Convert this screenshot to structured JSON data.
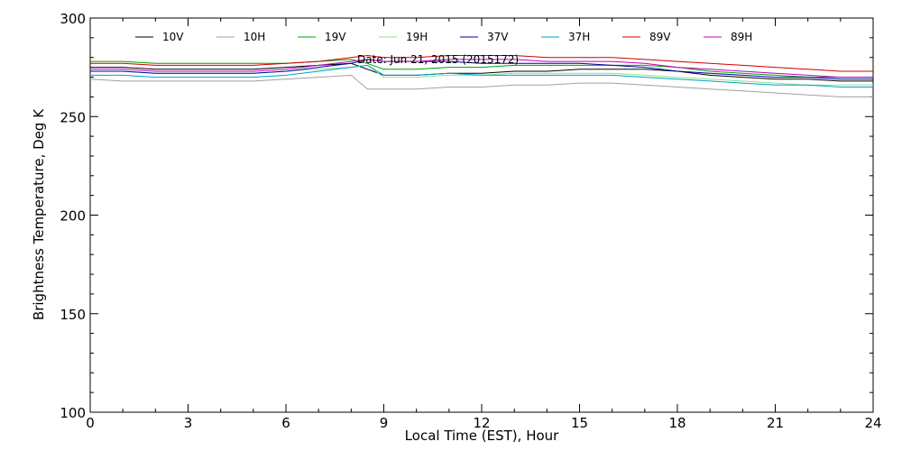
{
  "chart_data": {
    "type": "line",
    "title": "",
    "annotation": "Date: Jun 21, 2015 (2015172)",
    "xlabel": "Local Time (EST), Hour",
    "ylabel": "Brightness Temperature, Deg K",
    "xlim": [
      0,
      24
    ],
    "ylim": [
      100,
      300
    ],
    "xticks": [
      0,
      3,
      6,
      9,
      12,
      15,
      18,
      21,
      24
    ],
    "yticks": [
      100,
      150,
      200,
      250,
      300
    ],
    "grid": false,
    "legend_position": "top",
    "x": [
      0,
      1,
      2,
      3,
      4,
      5,
      6,
      7,
      8,
      8.5,
      9,
      10,
      11,
      12,
      13,
      14,
      15,
      16,
      17,
      18,
      19,
      20,
      21,
      22,
      23,
      24
    ],
    "series": [
      {
        "name": "10V",
        "color": "#000000",
        "values": [
          275,
          275,
          274,
          274,
          274,
          274,
          275,
          276,
          277,
          274,
          271,
          271,
          272,
          272,
          273,
          273,
          274,
          274,
          274,
          273,
          271,
          270,
          269,
          269,
          268,
          268
        ]
      },
      {
        "name": "10H",
        "color": "#a0a0a0",
        "values": [
          269,
          268,
          268,
          268,
          268,
          268,
          269,
          270,
          271,
          264,
          264,
          264,
          265,
          265,
          266,
          266,
          267,
          267,
          266,
          265,
          264,
          263,
          262,
          261,
          260,
          260
        ]
      },
      {
        "name": "19V",
        "color": "#00a000",
        "values": [
          278,
          278,
          277,
          277,
          277,
          277,
          277,
          278,
          279,
          277,
          274,
          274,
          275,
          275,
          276,
          276,
          276,
          276,
          276,
          275,
          273,
          272,
          271,
          270,
          270,
          270
        ]
      },
      {
        "name": "19H",
        "color": "#90e090",
        "values": [
          273,
          273,
          272,
          272,
          272,
          272,
          273,
          274,
          275,
          276,
          270,
          270,
          271,
          271,
          272,
          272,
          272,
          272,
          271,
          270,
          269,
          268,
          267,
          266,
          266,
          266
        ]
      },
      {
        "name": "37V",
        "color": "#0000a0",
        "values": [
          273,
          273,
          272,
          272,
          272,
          272,
          273,
          275,
          277,
          279,
          278,
          278,
          278,
          277,
          277,
          277,
          277,
          276,
          275,
          273,
          272,
          271,
          270,
          270,
          269,
          269
        ]
      },
      {
        "name": "37H",
        "color": "#00a0c8",
        "values": [
          271,
          271,
          270,
          270,
          270,
          270,
          271,
          273,
          275,
          276,
          271,
          271,
          272,
          271,
          271,
          271,
          271,
          271,
          270,
          269,
          268,
          267,
          266,
          266,
          265,
          265
        ]
      },
      {
        "name": "89V",
        "color": "#d00000",
        "values": [
          277,
          277,
          276,
          276,
          276,
          276,
          277,
          278,
          280,
          281,
          280,
          280,
          281,
          281,
          281,
          280,
          280,
          280,
          279,
          278,
          277,
          276,
          275,
          274,
          273,
          273
        ]
      },
      {
        "name": "89H",
        "color": "#c000c0",
        "values": [
          274,
          274,
          273,
          273,
          273,
          273,
          274,
          276,
          278,
          279,
          278,
          278,
          279,
          279,
          279,
          278,
          278,
          278,
          277,
          275,
          274,
          273,
          272,
          271,
          270,
          270
        ]
      }
    ]
  }
}
